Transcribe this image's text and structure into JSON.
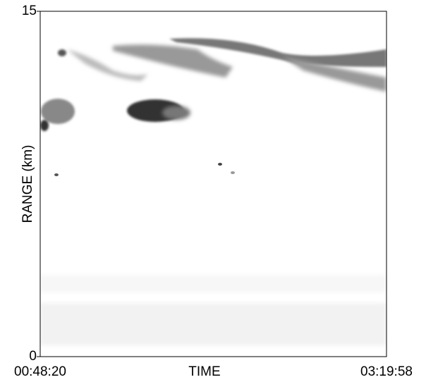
{
  "chart_data": {
    "type": "image",
    "xlabel": "TIME",
    "ylabel": "RANGE (km)",
    "xlim": [
      "00:48:20",
      "03:19:58"
    ],
    "ylim": [
      0,
      15
    ],
    "yticks": [
      0,
      15
    ]
  }
}
